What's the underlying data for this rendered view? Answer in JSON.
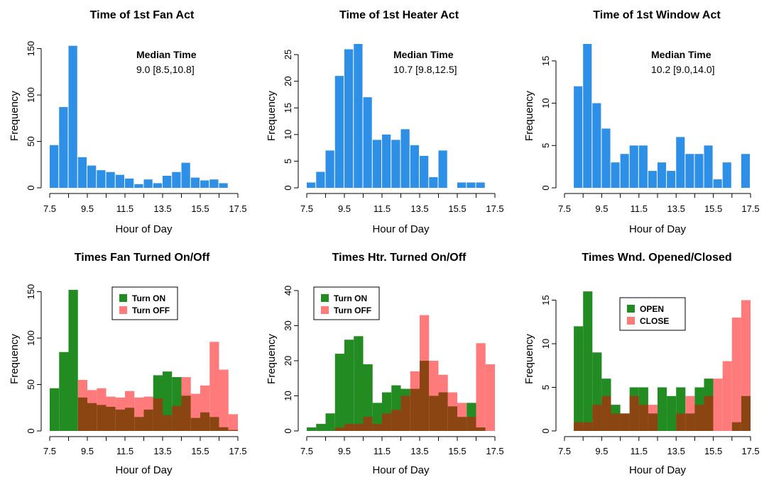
{
  "colors": {
    "blue": "#2e8fe6",
    "green": "#228b22",
    "pink": "#ff7b7b",
    "brown": "#8b4513"
  },
  "chart_data": [
    {
      "type": "bar",
      "title": "Time of 1st Fan Act",
      "xlabel": "Hour of Day",
      "ylabel": "Frequency",
      "xlim": [
        7.5,
        17.5
      ],
      "ylim": [
        0,
        155
      ],
      "xticks": [
        "7.5",
        "9.5",
        "11.5",
        "13.5",
        "15.5",
        "17.5"
      ],
      "yticks": [
        "0",
        "50",
        "100",
        "150"
      ],
      "bin_start": 7.5,
      "bin_width": 0.5,
      "annotation_title": "Median Time",
      "annotation_value": "9.0 [8.5,10.8]",
      "series": [
        {
          "values": [
            46,
            87,
            153,
            33,
            24,
            19,
            17,
            14,
            10,
            4,
            9,
            5,
            13,
            17,
            27,
            11,
            8,
            9,
            5
          ]
        }
      ]
    },
    {
      "type": "bar",
      "title": "Time of 1st Heater Act",
      "xlabel": "Hour of Day",
      "ylabel": "Frequency",
      "xlim": [
        7.5,
        17.5
      ],
      "ylim": [
        0,
        27
      ],
      "xticks": [
        "7.5",
        "9.5",
        "11.5",
        "13.5",
        "15.5",
        "17.5"
      ],
      "yticks": [
        "0",
        "5",
        "10",
        "15",
        "20",
        "25"
      ],
      "bin_start": 7.5,
      "bin_width": 0.5,
      "annotation_title": "Median Time",
      "annotation_value": "10.7 [9.8,12.5]",
      "series": [
        {
          "values": [
            1,
            3,
            7,
            21,
            26,
            27,
            17,
            9,
            10,
            9,
            11,
            8,
            6,
            2,
            7,
            0,
            1,
            1,
            1
          ]
        }
      ]
    },
    {
      "type": "bar",
      "title": "Time of 1st Window Act",
      "xlabel": "Hour of Day",
      "ylabel": "Frequency",
      "xlim": [
        7.5,
        17.5
      ],
      "ylim": [
        0,
        17
      ],
      "xticks": [
        "7.5",
        "9.5",
        "11.5",
        "13.5",
        "15.5",
        "17.5"
      ],
      "yticks": [
        "0",
        "5",
        "10",
        "15"
      ],
      "bin_start": 7.5,
      "bin_width": 0.5,
      "annotation_title": "Median Time",
      "annotation_value": "10.2 [9.0,14.0]",
      "series": [
        {
          "values": [
            0,
            12,
            17,
            10,
            7,
            3,
            4,
            5,
            5,
            2,
            3,
            2,
            6,
            4,
            4,
            5,
            1,
            3,
            0,
            4
          ]
        }
      ]
    },
    {
      "type": "bar",
      "title": "Times Fan Turned On/Off",
      "xlabel": "Hour of Day",
      "ylabel": "Frequency",
      "xlim": [
        7.5,
        17.5
      ],
      "ylim": [
        0,
        155
      ],
      "xticks": [
        "7.5",
        "9.5",
        "11.5",
        "13.5",
        "15.5",
        "17.5"
      ],
      "yticks": [
        "0",
        "50",
        "100",
        "150"
      ],
      "bin_start": 7.5,
      "bin_width": 0.5,
      "series": [
        {
          "name": "Turn ON",
          "color": "#228b22",
          "values": [
            46,
            85,
            152,
            36,
            30,
            28,
            26,
            23,
            25,
            15,
            23,
            60,
            64,
            58,
            38,
            14,
            20,
            15,
            4,
            1
          ]
        },
        {
          "name": "Turn OFF",
          "color": "#ff7b7b",
          "values": [
            0,
            0,
            0,
            55,
            44,
            46,
            37,
            36,
            43,
            36,
            37,
            35,
            17,
            27,
            58,
            40,
            49,
            96,
            66,
            18
          ]
        }
      ],
      "legend": "top-center"
    },
    {
      "type": "bar",
      "title": "Times Htr. Turned On/Off",
      "xlabel": "Hour of Day",
      "ylabel": "Frequency",
      "xlim": [
        7.5,
        17.5
      ],
      "ylim": [
        0,
        41
      ],
      "xticks": [
        "7.5",
        "9.5",
        "11.5",
        "13.5",
        "15.5",
        "17.5"
      ],
      "yticks": [
        "0",
        "10",
        "20",
        "30",
        "40"
      ],
      "bin_start": 7.5,
      "bin_width": 0.5,
      "series": [
        {
          "name": "Turn ON",
          "color": "#228b22",
          "values": [
            1,
            2,
            5,
            22,
            26,
            27,
            19,
            8,
            11,
            13,
            12,
            12,
            20,
            10,
            11,
            7,
            4,
            8,
            1,
            0
          ]
        },
        {
          "name": "Turn OFF",
          "color": "#ff7b7b",
          "values": [
            0,
            0,
            0,
            1,
            2,
            2,
            4,
            2,
            5,
            6,
            10,
            17,
            33,
            20,
            16,
            11,
            8,
            4,
            25,
            19
          ]
        }
      ],
      "legend": "top-left"
    },
    {
      "type": "bar",
      "title": "Times Wnd. Opened/Closed",
      "xlabel": "Hour of Day",
      "ylabel": "Frequency",
      "xlim": [
        7.5,
        17.5
      ],
      "ylim": [
        0,
        16.5
      ],
      "xticks": [
        "7.5",
        "9.5",
        "11.5",
        "13.5",
        "15.5",
        "17.5"
      ],
      "yticks": [
        "0",
        "5",
        "10",
        "15"
      ],
      "bin_start": 7.5,
      "bin_width": 0.5,
      "series": [
        {
          "name": "OPEN",
          "color": "#228b22",
          "values": [
            0,
            12,
            16,
            9,
            6,
            3,
            2,
            5,
            5,
            2,
            5,
            4,
            5,
            2,
            5,
            6,
            0,
            0,
            1,
            4
          ]
        },
        {
          "name": "CLOSE",
          "color": "#ff7b7b",
          "values": [
            0,
            1,
            1,
            3,
            4,
            2,
            2,
            4,
            3,
            3,
            0,
            0,
            2,
            4,
            3,
            4,
            6,
            8,
            13,
            15
          ]
        }
      ],
      "legend": "top-center"
    }
  ]
}
